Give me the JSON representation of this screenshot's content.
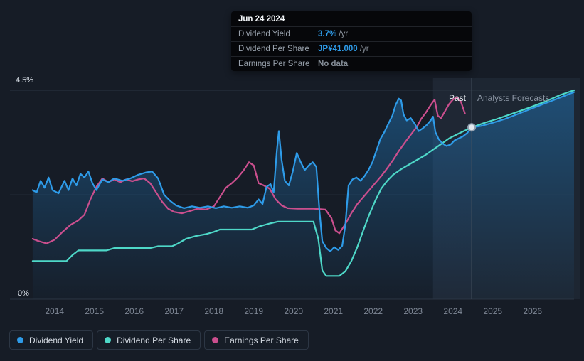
{
  "tooltip": {
    "date": "Jun 24 2024",
    "rows": [
      {
        "label": "Dividend Yield",
        "value": "3.7%",
        "suffix": " /yr",
        "value_color": "#2e9be8"
      },
      {
        "label": "Dividend Per Share",
        "value": "JP¥41.000",
        "suffix": " /yr",
        "value_color": "#2e9be8"
      },
      {
        "label": "Earnings Per Share",
        "value": "No data",
        "suffix": "",
        "value_color": "#848d97"
      }
    ]
  },
  "axis": {
    "y_top_label": "4.5%",
    "y_bottom_label": "0%"
  },
  "annotations": {
    "past_label": "Past",
    "forecast_label": "Analysts Forecasts"
  },
  "chart_data": {
    "type": "line",
    "x_range": [
      2012.88,
      2027.04
    ],
    "ylim": [
      0,
      4.5
    ],
    "x_ticks": [
      2014,
      2015,
      2016,
      2017,
      2018,
      2019,
      2020,
      2021,
      2022,
      2023,
      2024,
      2025,
      2026
    ],
    "y_gridlines": [
      0,
      2.25,
      4.5
    ],
    "divider_x": 2024.47,
    "highlight_band": [
      2023.5,
      2024.47
    ],
    "marker": {
      "x": 2024.47,
      "y": 3.7
    },
    "legend_position": "bottom-left",
    "series": [
      {
        "name": "Dividend Yield",
        "color": "#2e9be8",
        "points": [
          [
            2013.45,
            2.35
          ],
          [
            2013.55,
            2.3
          ],
          [
            2013.65,
            2.55
          ],
          [
            2013.75,
            2.4
          ],
          [
            2013.85,
            2.62
          ],
          [
            2013.95,
            2.35
          ],
          [
            2014.1,
            2.28
          ],
          [
            2014.25,
            2.55
          ],
          [
            2014.35,
            2.35
          ],
          [
            2014.45,
            2.6
          ],
          [
            2014.55,
            2.45
          ],
          [
            2014.65,
            2.7
          ],
          [
            2014.75,
            2.62
          ],
          [
            2014.85,
            2.75
          ],
          [
            2014.95,
            2.5
          ],
          [
            2015.05,
            2.35
          ],
          [
            2015.2,
            2.58
          ],
          [
            2015.35,
            2.52
          ],
          [
            2015.5,
            2.6
          ],
          [
            2015.7,
            2.55
          ],
          [
            2015.9,
            2.6
          ],
          [
            2016.1,
            2.68
          ],
          [
            2016.3,
            2.73
          ],
          [
            2016.45,
            2.75
          ],
          [
            2016.6,
            2.6
          ],
          [
            2016.75,
            2.25
          ],
          [
            2016.9,
            2.12
          ],
          [
            2017.05,
            2.02
          ],
          [
            2017.25,
            1.96
          ],
          [
            2017.45,
            2.0
          ],
          [
            2017.65,
            1.97
          ],
          [
            2017.85,
            2.0
          ],
          [
            2018.05,
            1.96
          ],
          [
            2018.25,
            2.0
          ],
          [
            2018.45,
            1.97
          ],
          [
            2018.65,
            2.0
          ],
          [
            2018.85,
            1.97
          ],
          [
            2019.0,
            2.02
          ],
          [
            2019.12,
            2.15
          ],
          [
            2019.22,
            2.05
          ],
          [
            2019.32,
            2.42
          ],
          [
            2019.42,
            2.48
          ],
          [
            2019.5,
            2.3
          ],
          [
            2019.58,
            3.2
          ],
          [
            2019.63,
            3.62
          ],
          [
            2019.7,
            3.0
          ],
          [
            2019.78,
            2.55
          ],
          [
            2019.88,
            2.45
          ],
          [
            2019.98,
            2.75
          ],
          [
            2020.08,
            3.15
          ],
          [
            2020.18,
            2.95
          ],
          [
            2020.28,
            2.78
          ],
          [
            2020.38,
            2.88
          ],
          [
            2020.48,
            2.95
          ],
          [
            2020.57,
            2.85
          ],
          [
            2020.65,
            1.9
          ],
          [
            2020.72,
            1.25
          ],
          [
            2020.82,
            1.1
          ],
          [
            2020.92,
            1.03
          ],
          [
            2021.02,
            1.12
          ],
          [
            2021.12,
            1.06
          ],
          [
            2021.22,
            1.15
          ],
          [
            2021.3,
            1.6
          ],
          [
            2021.38,
            2.45
          ],
          [
            2021.48,
            2.58
          ],
          [
            2021.58,
            2.62
          ],
          [
            2021.68,
            2.55
          ],
          [
            2021.78,
            2.65
          ],
          [
            2021.88,
            2.78
          ],
          [
            2021.98,
            2.95
          ],
          [
            2022.08,
            3.2
          ],
          [
            2022.18,
            3.45
          ],
          [
            2022.28,
            3.6
          ],
          [
            2022.38,
            3.78
          ],
          [
            2022.48,
            3.95
          ],
          [
            2022.56,
            4.18
          ],
          [
            2022.64,
            4.32
          ],
          [
            2022.7,
            4.28
          ],
          [
            2022.76,
            3.98
          ],
          [
            2022.84,
            3.85
          ],
          [
            2022.94,
            3.9
          ],
          [
            2023.04,
            3.78
          ],
          [
            2023.14,
            3.62
          ],
          [
            2023.24,
            3.68
          ],
          [
            2023.34,
            3.75
          ],
          [
            2023.44,
            3.85
          ],
          [
            2023.5,
            3.93
          ],
          [
            2023.56,
            3.6
          ],
          [
            2023.64,
            3.45
          ],
          [
            2023.74,
            3.35
          ],
          [
            2023.84,
            3.3
          ],
          [
            2023.94,
            3.33
          ],
          [
            2024.04,
            3.42
          ],
          [
            2024.14,
            3.46
          ],
          [
            2024.24,
            3.5
          ],
          [
            2024.36,
            3.58
          ],
          [
            2024.47,
            3.7
          ]
        ],
        "forecast_points": [
          [
            2024.47,
            3.7
          ],
          [
            2024.7,
            3.73
          ],
          [
            2025.0,
            3.8
          ],
          [
            2025.3,
            3.88
          ],
          [
            2025.6,
            3.98
          ],
          [
            2025.9,
            4.08
          ],
          [
            2026.2,
            4.18
          ],
          [
            2026.5,
            4.28
          ],
          [
            2026.8,
            4.38
          ],
          [
            2027.04,
            4.46
          ]
        ]
      },
      {
        "name": "Dividend Per Share",
        "color": "#4ed8c8",
        "points": [
          [
            2013.45,
            0.82
          ],
          [
            2014.3,
            0.82
          ],
          [
            2014.45,
            0.95
          ],
          [
            2014.6,
            1.05
          ],
          [
            2015.3,
            1.05
          ],
          [
            2015.5,
            1.1
          ],
          [
            2016.4,
            1.1
          ],
          [
            2016.6,
            1.14
          ],
          [
            2016.95,
            1.14
          ],
          [
            2017.1,
            1.2
          ],
          [
            2017.3,
            1.3
          ],
          [
            2017.55,
            1.36
          ],
          [
            2017.8,
            1.4
          ],
          [
            2018.0,
            1.45
          ],
          [
            2018.15,
            1.5
          ],
          [
            2018.95,
            1.5
          ],
          [
            2019.15,
            1.57
          ],
          [
            2019.4,
            1.63
          ],
          [
            2019.6,
            1.67
          ],
          [
            2020.5,
            1.67
          ],
          [
            2020.62,
            1.3
          ],
          [
            2020.72,
            0.62
          ],
          [
            2020.82,
            0.5
          ],
          [
            2021.15,
            0.5
          ],
          [
            2021.3,
            0.6
          ],
          [
            2021.45,
            0.82
          ],
          [
            2021.6,
            1.12
          ],
          [
            2021.75,
            1.48
          ],
          [
            2021.9,
            1.82
          ],
          [
            2022.05,
            2.12
          ],
          [
            2022.2,
            2.38
          ],
          [
            2022.35,
            2.55
          ],
          [
            2022.5,
            2.68
          ],
          [
            2022.7,
            2.8
          ],
          [
            2022.9,
            2.9
          ],
          [
            2023.1,
            3.0
          ],
          [
            2023.3,
            3.1
          ],
          [
            2023.5,
            3.22
          ],
          [
            2023.7,
            3.34
          ],
          [
            2023.9,
            3.46
          ],
          [
            2024.1,
            3.55
          ],
          [
            2024.3,
            3.63
          ],
          [
            2024.47,
            3.7
          ]
        ],
        "forecast_points": [
          [
            2024.47,
            3.7
          ],
          [
            2024.8,
            3.8
          ],
          [
            2025.1,
            3.88
          ],
          [
            2025.5,
            4.0
          ],
          [
            2025.9,
            4.12
          ],
          [
            2026.3,
            4.25
          ],
          [
            2026.7,
            4.4
          ],
          [
            2027.04,
            4.5
          ]
        ]
      },
      {
        "name": "Earnings Per Share",
        "color": "#cb4f8e",
        "points": [
          [
            2013.45,
            1.3
          ],
          [
            2013.6,
            1.25
          ],
          [
            2013.8,
            1.2
          ],
          [
            2014.0,
            1.28
          ],
          [
            2014.2,
            1.45
          ],
          [
            2014.4,
            1.6
          ],
          [
            2014.6,
            1.7
          ],
          [
            2014.75,
            1.82
          ],
          [
            2014.9,
            2.15
          ],
          [
            2015.05,
            2.42
          ],
          [
            2015.2,
            2.6
          ],
          [
            2015.35,
            2.52
          ],
          [
            2015.5,
            2.58
          ],
          [
            2015.65,
            2.52
          ],
          [
            2015.8,
            2.58
          ],
          [
            2015.95,
            2.54
          ],
          [
            2016.1,
            2.58
          ],
          [
            2016.25,
            2.6
          ],
          [
            2016.4,
            2.5
          ],
          [
            2016.55,
            2.3
          ],
          [
            2016.7,
            2.1
          ],
          [
            2016.85,
            1.95
          ],
          [
            2017.0,
            1.88
          ],
          [
            2017.2,
            1.85
          ],
          [
            2017.4,
            1.9
          ],
          [
            2017.6,
            1.95
          ],
          [
            2017.8,
            1.93
          ],
          [
            2018.0,
            2.0
          ],
          [
            2018.15,
            2.2
          ],
          [
            2018.3,
            2.4
          ],
          [
            2018.45,
            2.5
          ],
          [
            2018.6,
            2.62
          ],
          [
            2018.75,
            2.78
          ],
          [
            2018.88,
            2.95
          ],
          [
            2019.0,
            2.88
          ],
          [
            2019.12,
            2.5
          ],
          [
            2019.25,
            2.45
          ],
          [
            2019.4,
            2.38
          ],
          [
            2019.55,
            2.15
          ],
          [
            2019.7,
            2.02
          ],
          [
            2019.85,
            1.96
          ],
          [
            2020.1,
            1.95
          ],
          [
            2020.5,
            1.95
          ],
          [
            2020.8,
            1.93
          ],
          [
            2020.95,
            1.75
          ],
          [
            2021.05,
            1.48
          ],
          [
            2021.15,
            1.42
          ],
          [
            2021.3,
            1.62
          ],
          [
            2021.45,
            1.85
          ],
          [
            2021.6,
            2.05
          ],
          [
            2021.75,
            2.2
          ],
          [
            2021.9,
            2.35
          ],
          [
            2022.05,
            2.5
          ],
          [
            2022.2,
            2.65
          ],
          [
            2022.35,
            2.82
          ],
          [
            2022.5,
            3.0
          ],
          [
            2022.65,
            3.2
          ],
          [
            2022.8,
            3.38
          ],
          [
            2022.95,
            3.55
          ],
          [
            2023.1,
            3.72
          ],
          [
            2023.2,
            3.88
          ],
          [
            2023.32,
            4.02
          ],
          [
            2023.44,
            4.18
          ],
          [
            2023.54,
            4.3
          ],
          [
            2023.62,
            3.95
          ],
          [
            2023.7,
            3.9
          ],
          [
            2023.8,
            4.05
          ],
          [
            2023.9,
            4.2
          ],
          [
            2024.0,
            4.3
          ],
          [
            2024.1,
            4.35
          ],
          [
            2024.2,
            4.25
          ],
          [
            2024.3,
            4.0
          ]
        ],
        "forecast_points": []
      }
    ]
  }
}
